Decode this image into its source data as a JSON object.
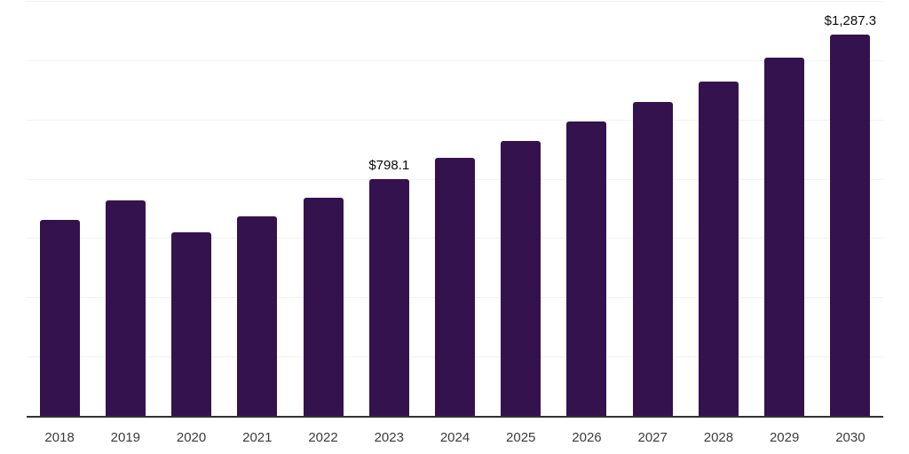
{
  "chart_data": {
    "type": "bar",
    "title": "",
    "xlabel": "",
    "ylabel": "",
    "categories": [
      "2018",
      "2019",
      "2020",
      "2021",
      "2022",
      "2023",
      "2024",
      "2025",
      "2026",
      "2027",
      "2028",
      "2029",
      "2030"
    ],
    "values": [
      660,
      726,
      620,
      673,
      736,
      798.1,
      871,
      928,
      992,
      1059,
      1129,
      1208,
      1287.3
    ],
    "point_labels": [
      {
        "category": "2023",
        "text": "$798.1"
      },
      {
        "category": "2030",
        "text": "$1,287.3"
      }
    ],
    "ylim": [
      0,
      1400
    ],
    "grid_step": 200,
    "grid": "horizontal",
    "legend": "none",
    "bar_color": "#34124E",
    "axis_color": "#333333",
    "grid_color": "#f2f2f2",
    "tick_label_color": "#3b3b3b",
    "value_label_color": "#0c0c0c",
    "background_color": "#ffffff"
  }
}
